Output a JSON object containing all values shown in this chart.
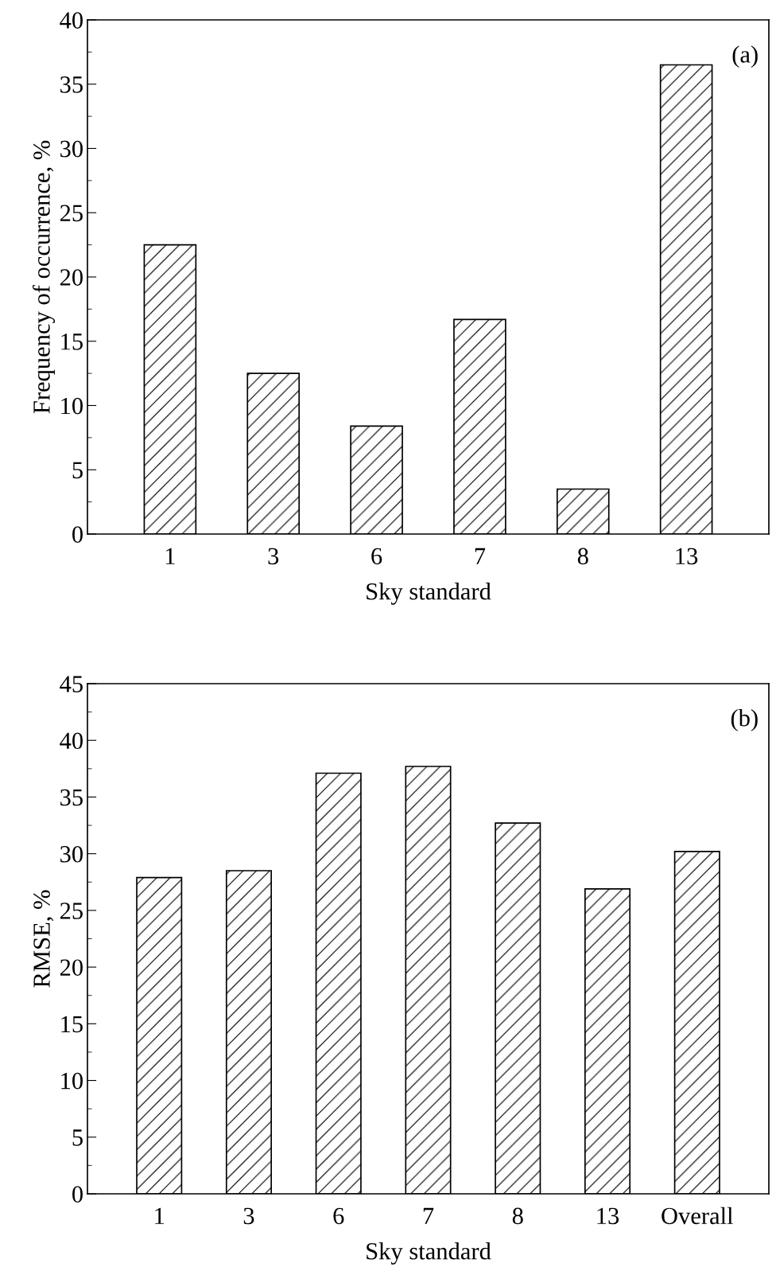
{
  "chart_data": [
    {
      "type": "bar",
      "xlabel": "Sky standard",
      "ylabel": "Frequency of occurrence, %",
      "categories": [
        "1",
        "3",
        "6",
        "7",
        "8",
        "13"
      ],
      "values": [
        22.5,
        12.5,
        8.4,
        16.7,
        3.5,
        36.5
      ],
      "color": "#000000",
      "ylim": [
        0,
        40
      ],
      "yticks": [
        0,
        5,
        10,
        15,
        20,
        25,
        30,
        35,
        40
      ],
      "grid": false,
      "annotations": [
        "(a)"
      ]
    },
    {
      "type": "bar",
      "xlabel": "Sky standard",
      "ylabel": "RMSE, %",
      "categories": [
        "1",
        "3",
        "6",
        "7",
        "8",
        "13",
        "Overall"
      ],
      "values": [
        27.9,
        28.5,
        37.1,
        37.7,
        32.7,
        26.9,
        30.2
      ],
      "color": "#000000",
      "ylim": [
        0,
        45
      ],
      "yticks": [
        0,
        5,
        10,
        15,
        20,
        25,
        30,
        35,
        40,
        45
      ],
      "grid": false,
      "annotations": [
        "(b)"
      ]
    }
  ]
}
